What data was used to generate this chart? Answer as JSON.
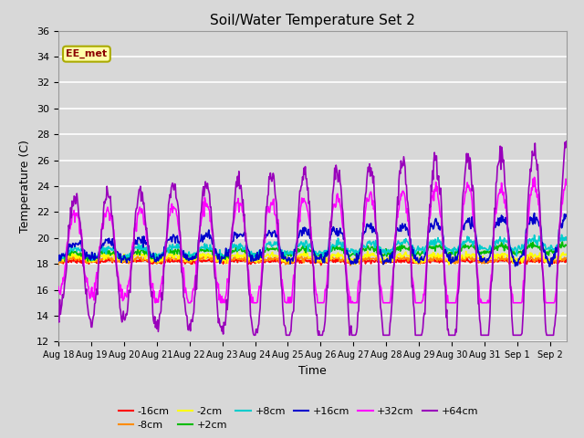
{
  "title": "Soil/Water Temperature Set 2",
  "xlabel": "Time",
  "ylabel": "Temperature (C)",
  "ylim": [
    12,
    36
  ],
  "yticks": [
    12,
    14,
    16,
    18,
    20,
    22,
    24,
    26,
    28,
    30,
    32,
    34,
    36
  ],
  "bg_color": "#d8d8d8",
  "watermark": "EE_met",
  "series_colors": {
    "-16cm": "#ff0000",
    "-8cm": "#ff8c00",
    "-2cm": "#ffff00",
    "+2cm": "#00bb00",
    "+8cm": "#00cccc",
    "+16cm": "#0000cc",
    "+32cm": "#ff00ff",
    "+64cm": "#9900bb"
  },
  "n_days": 15.5,
  "n_points": 744,
  "base_temp": 18.3,
  "legend_row1": [
    "-16cm",
    "-8cm",
    "-2cm",
    "+2cm",
    "+8cm",
    "+16cm"
  ],
  "legend_row2": [
    "+32cm",
    "+64cm"
  ]
}
